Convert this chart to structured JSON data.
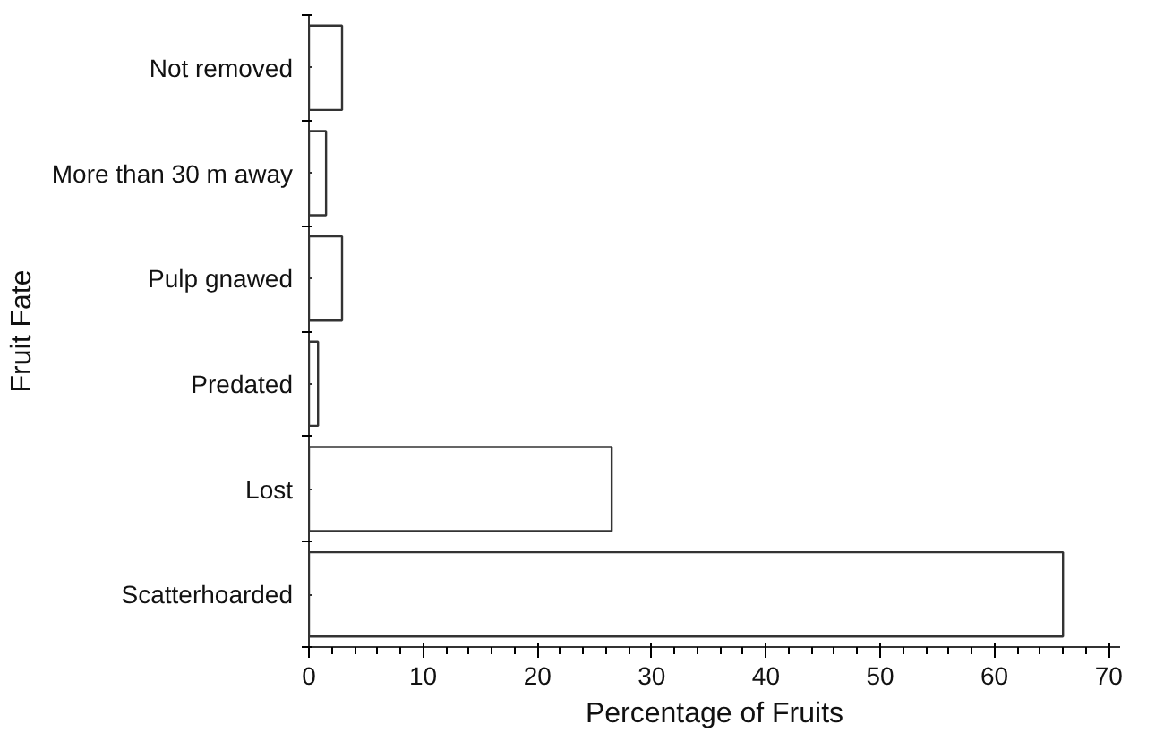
{
  "chart_data": {
    "type": "bar",
    "orientation": "horizontal",
    "xlabel": "Percentage of Fruits",
    "ylabel": "Fruit Fate",
    "categories": [
      "Not removed",
      "More than 30 m away",
      "Pulp gnawed",
      "Predated",
      "Lost",
      "Scatterhoarded"
    ],
    "values": [
      2.9,
      1.5,
      2.9,
      0.8,
      26.5,
      66
    ],
    "color": "#ffffff",
    "xlim": [
      0,
      71
    ],
    "xticks": [
      0,
      10,
      20,
      30,
      40,
      50,
      60,
      70
    ],
    "grid": false
  }
}
